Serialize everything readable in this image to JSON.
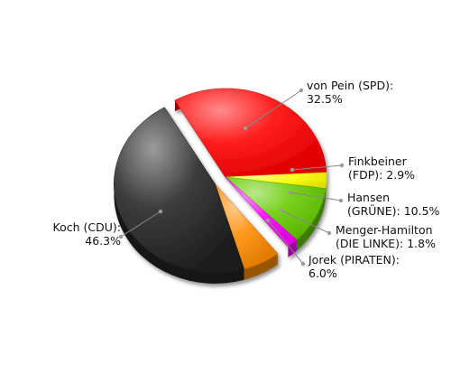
{
  "chart_data": {
    "type": "pie",
    "title": "",
    "unit": "%",
    "slices": [
      {
        "label_lines": [
          "von Pein (SPD):",
          "32.5%"
        ],
        "value": 32.5,
        "color": "#ff0000",
        "exploded": false
      },
      {
        "label_lines": [
          "Finkbeiner",
          "(FDP): 2.9%"
        ],
        "value": 2.9,
        "color": "#ffff00",
        "exploded": false
      },
      {
        "label_lines": [
          "Hansen",
          "(GRÜNE): 10.5%"
        ],
        "value": 10.5,
        "color": "#66cc00",
        "exploded": false
      },
      {
        "label_lines": [
          "Menger-Hamilton",
          "(DIE LINKE): 1.8%"
        ],
        "value": 1.8,
        "color": "#ff00ff",
        "exploded": false
      },
      {
        "label_lines": [
          "Jorek (PIRATEN):",
          "6.0%"
        ],
        "value": 6.0,
        "color": "#ff8c00",
        "exploded": true
      },
      {
        "label_lines": [
          "Koch (CDU):",
          "46.3%"
        ],
        "value": 46.3,
        "color": "#222222",
        "exploded": true
      }
    ]
  }
}
